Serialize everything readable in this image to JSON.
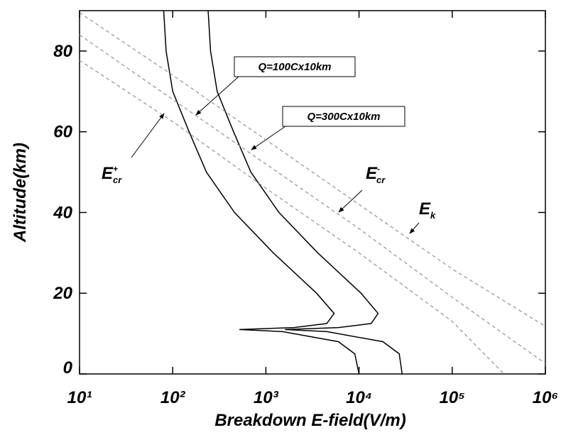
{
  "chart_data": {
    "type": "line",
    "xlabel": "Breakdown E-field(V/m)",
    "ylabel": "Altitude(km)",
    "xscale": "log",
    "xlim": [
      10,
      1000000
    ],
    "ylim": [
      0,
      90
    ],
    "xticks": [
      {
        "value": 10,
        "label": "10¹"
      },
      {
        "value": 100,
        "label": "10²"
      },
      {
        "value": 1000,
        "label": "10³"
      },
      {
        "value": 10000,
        "label": "10⁴"
      },
      {
        "value": 100000,
        "label": "10⁵"
      },
      {
        "value": 1000000,
        "label": "10⁶"
      }
    ],
    "yticks": [
      0,
      20,
      40,
      60,
      80
    ],
    "series": [
      {
        "color": "#000000",
        "style": "solid",
        "x": [
          80,
          85,
          100,
          150,
          230,
          460,
          1200,
          3500,
          5400,
          4500,
          2000,
          520,
          1500,
          6000,
          9000,
          10000
        ],
        "values": [
          90,
          80,
          70,
          60,
          50,
          40,
          30,
          20,
          15,
          12.5,
          11.5,
          11,
          10.5,
          8,
          5,
          0
        ]
      },
      {
        "color": "#000000",
        "style": "solid",
        "x": [
          240,
          255,
          300,
          450,
          690,
          1380,
          3600,
          10500,
          16000,
          13500,
          6000,
          1600,
          4500,
          18000,
          27000,
          29000
        ],
        "values": [
          90,
          80,
          70,
          60,
          50,
          40,
          30,
          20,
          15,
          12.5,
          11.5,
          11,
          10.5,
          8,
          5,
          0
        ]
      },
      {
        "color": "#999999",
        "style": "dashed",
        "x": [
          10,
          100,
          1000,
          10000,
          100000,
          1000000
        ],
        "values": [
          89.5,
          74,
          58,
          42,
          26,
          11.8
        ]
      },
      {
        "color": "#999999",
        "style": "dashed",
        "x": [
          10,
          100,
          1000,
          10000,
          100000,
          1000000
        ],
        "values": [
          84,
          68,
          52,
          36,
          19,
          2.6
        ]
      },
      {
        "color": "#999999",
        "style": "dashed",
        "x": [
          10,
          100,
          1000,
          10000,
          100000,
          360000
        ],
        "values": [
          77.7,
          62.5,
          46,
          30,
          13,
          0
        ]
      }
    ],
    "annotations": [
      {
        "text": "Q=100Cx10km"
      },
      {
        "text": "Q=300Cx10km"
      },
      {
        "text": "E",
        "sup": "+",
        "sub": "cr"
      },
      {
        "text": "E",
        "sup": "-",
        "sub": "cr"
      },
      {
        "text": "E",
        "sub": "k"
      }
    ]
  }
}
